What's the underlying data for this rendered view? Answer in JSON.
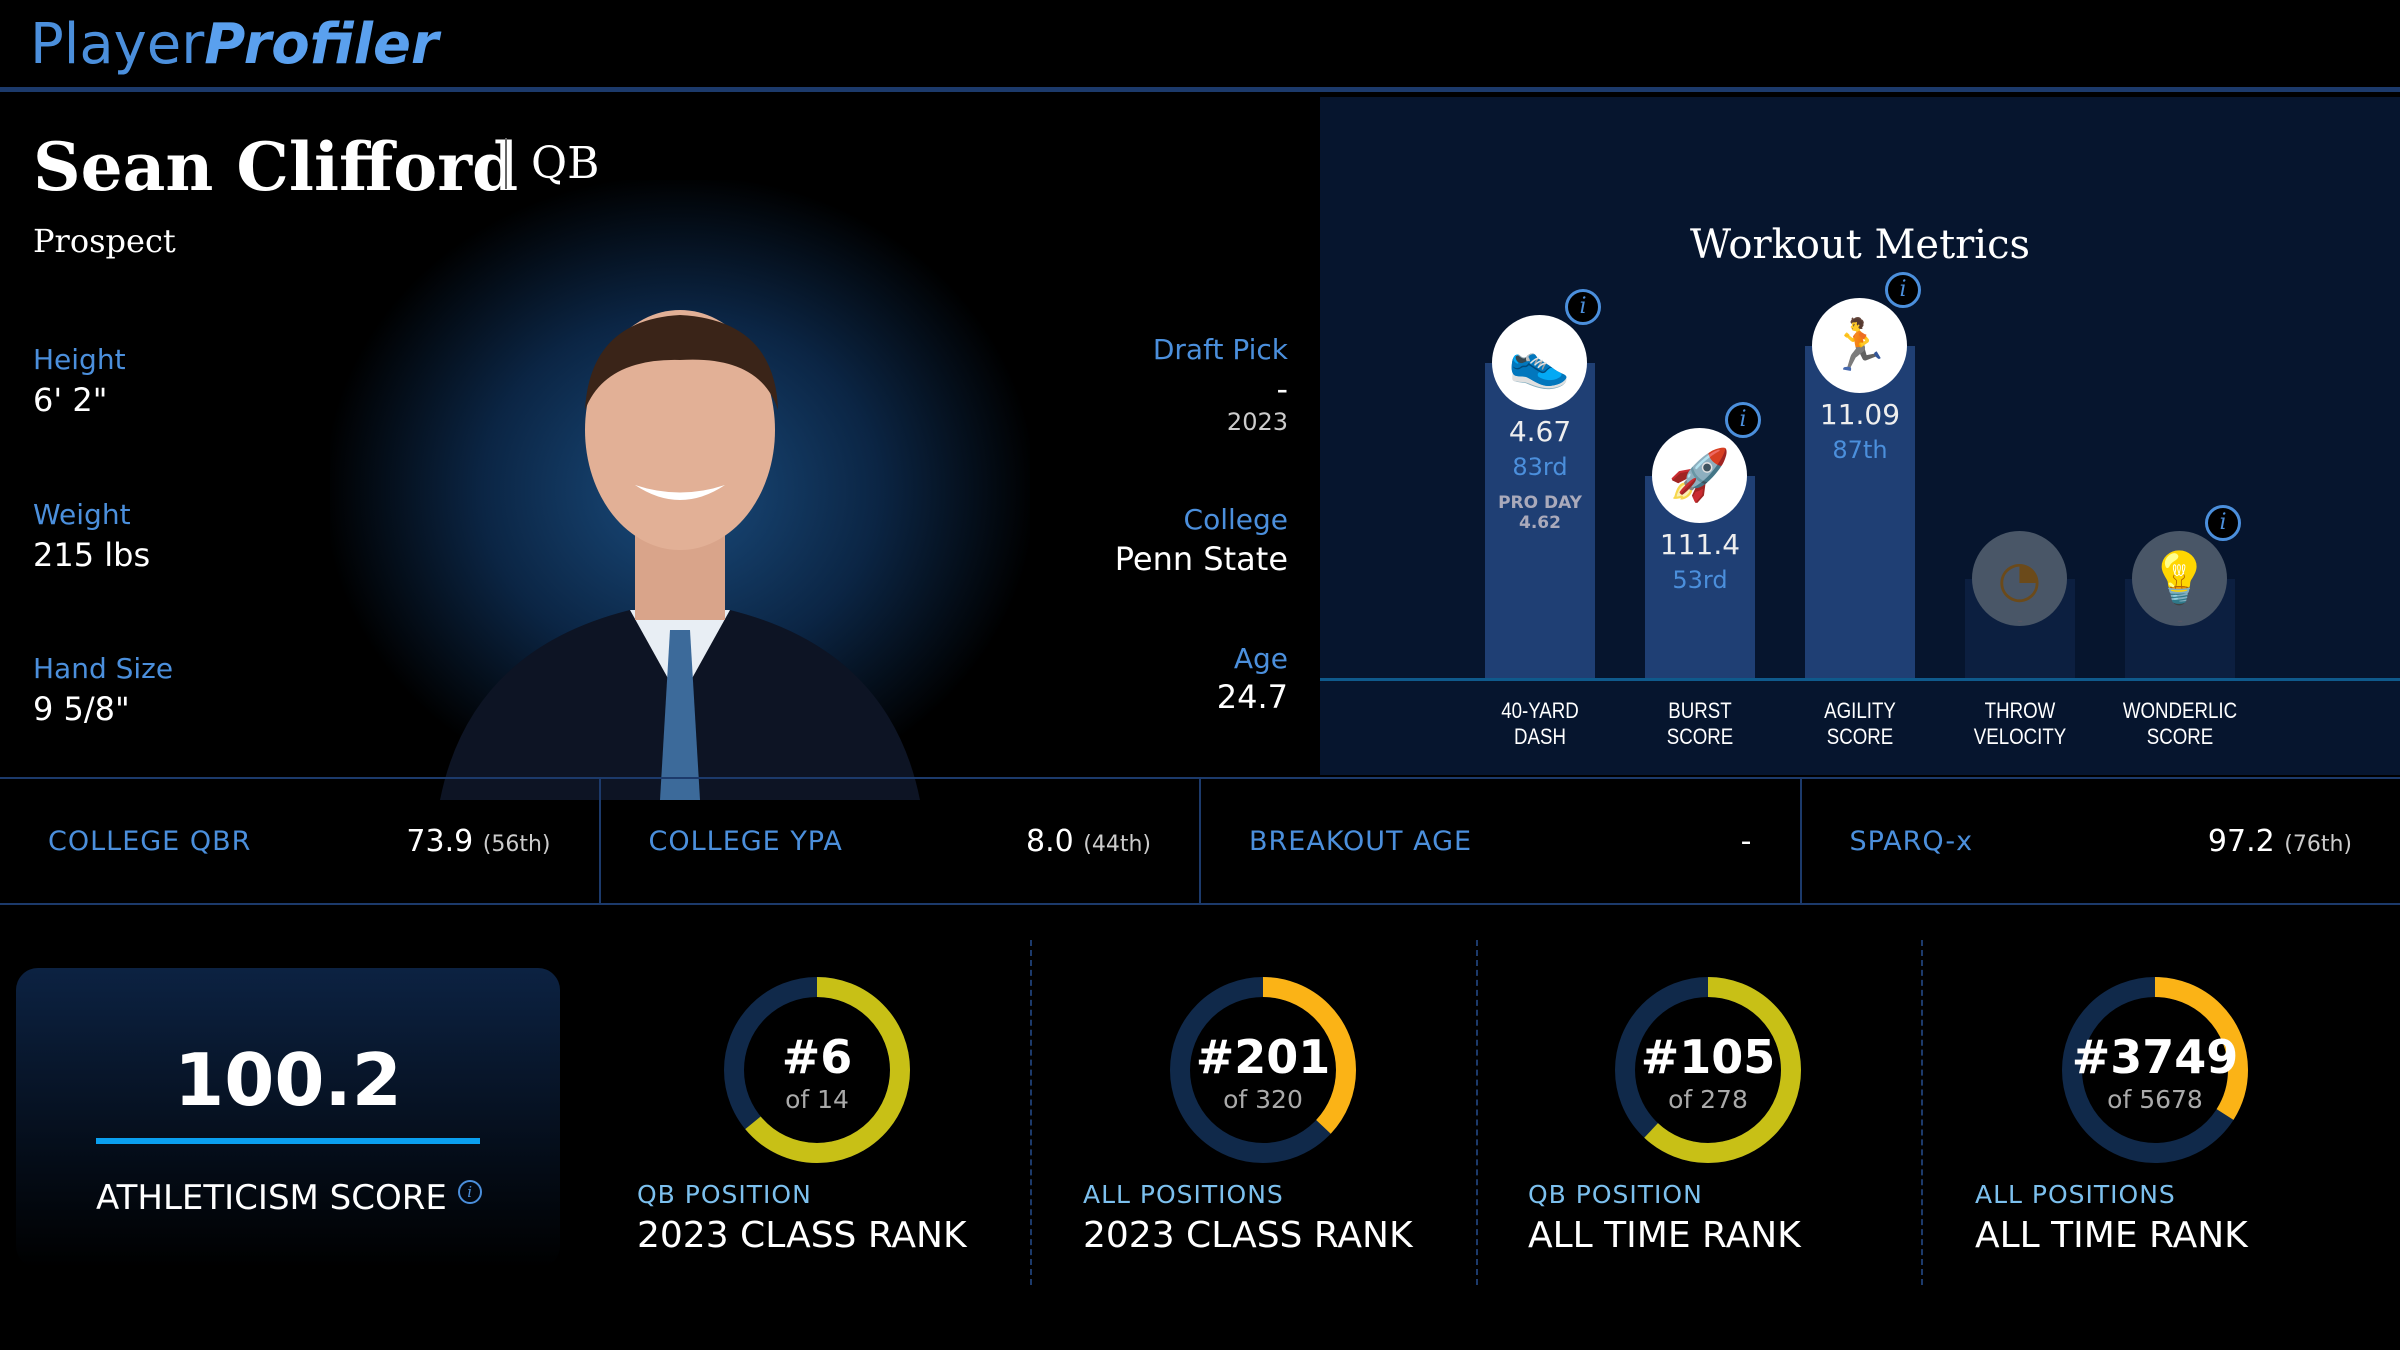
{
  "header": {
    "logo_a": "Player",
    "logo_b": "Profiler"
  },
  "player": {
    "name": "Sean Clifford",
    "position": "QB",
    "status": "Prospect"
  },
  "bio_left": [
    {
      "label": "Height",
      "value": "6' 2\""
    },
    {
      "label": "Weight",
      "value": "215 lbs"
    },
    {
      "label": "Hand Size",
      "value": "9 5/8\""
    }
  ],
  "bio_right": {
    "draft_label": "Draft Pick",
    "draft_value": "-",
    "draft_year": "2023",
    "college_label": "College",
    "college_value": "Penn State",
    "age_label": "Age",
    "age_value": "24.7"
  },
  "workout": {
    "title": "Workout Metrics",
    "info": "i",
    "metrics": [
      {
        "label1": "40-YARD",
        "label2": "DASH",
        "value": "4.67",
        "pct": "83rd",
        "extra1": "PRO DAY",
        "extra2": "4.62",
        "icon": "shoe-icon",
        "percentile": 83
      },
      {
        "label1": "BURST",
        "label2": "SCORE",
        "value": "111.4",
        "pct": "53rd",
        "icon": "rocket-icon",
        "percentile": 53
      },
      {
        "label1": "AGILITY",
        "label2": "SCORE",
        "value": "11.09",
        "pct": "87th",
        "icon": "runner-icon",
        "percentile": 87
      },
      {
        "label1": "THROW",
        "label2": "VELOCITY",
        "value": "-",
        "icon": "gauge-icon"
      },
      {
        "label1": "WONDERLIC",
        "label2": "SCORE",
        "value": "-",
        "icon": "lightbulb-icon"
      }
    ]
  },
  "stats": [
    {
      "label": "COLLEGE QBR",
      "value": "73.9",
      "pct": "(56th)"
    },
    {
      "label": "COLLEGE YPA",
      "value": "8.0",
      "pct": "(44th)"
    },
    {
      "label": "BREAKOUT AGE",
      "value": "-",
      "pct": ""
    },
    {
      "label": "SPARQ-x",
      "value": "97.2",
      "pct": "(76th)"
    }
  ],
  "athleticism": {
    "value": "100.2",
    "label": "ATHLETICISM SCORE",
    "info": "i"
  },
  "ranks": [
    {
      "rank": "#6",
      "of": "of 14",
      "small": "QB POSITION",
      "big": "2023 CLASS RANK",
      "fill": 0.64,
      "color": "#c8c016"
    },
    {
      "rank": "#201",
      "of": "of 320",
      "small": "ALL POSITIONS",
      "big": "2023 CLASS RANK",
      "fill": 0.37,
      "color": "#fbb316"
    },
    {
      "rank": "#105",
      "of": "of 278",
      "small": "QB POSITION",
      "big": "ALL TIME RANK",
      "fill": 0.62,
      "color": "#c8c016"
    },
    {
      "rank": "#3749",
      "of": "of 5678",
      "small": "ALL POSITIONS",
      "big": "ALL TIME RANK",
      "fill": 0.34,
      "color": "#fbb316"
    }
  ]
}
